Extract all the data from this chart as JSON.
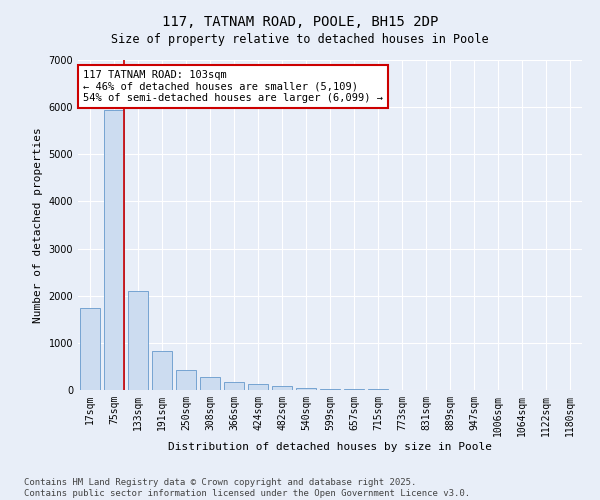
{
  "title": "117, TATNAM ROAD, POOLE, BH15 2DP",
  "subtitle": "Size of property relative to detached houses in Poole",
  "xlabel": "Distribution of detached houses by size in Poole",
  "ylabel": "Number of detached properties",
  "categories": [
    "17sqm",
    "75sqm",
    "133sqm",
    "191sqm",
    "250sqm",
    "308sqm",
    "366sqm",
    "424sqm",
    "482sqm",
    "540sqm",
    "599sqm",
    "657sqm",
    "715sqm",
    "773sqm",
    "831sqm",
    "889sqm",
    "947sqm",
    "1006sqm",
    "1064sqm",
    "1122sqm",
    "1180sqm"
  ],
  "values": [
    1750,
    5950,
    2100,
    820,
    430,
    270,
    170,
    130,
    80,
    50,
    30,
    20,
    15,
    5,
    3,
    2,
    1,
    1,
    0,
    0,
    0
  ],
  "bar_color": "#ccdcf0",
  "bar_edge_color": "#6699cc",
  "vline_color": "#cc0000",
  "vline_x_index": 1,
  "annotation_text": "117 TATNAM ROAD: 103sqm\n← 46% of detached houses are smaller (5,109)\n54% of semi-detached houses are larger (6,099) →",
  "annotation_box_facecolor": "#ffffff",
  "annotation_box_edgecolor": "#cc0000",
  "ylim": [
    0,
    7000
  ],
  "yticks": [
    0,
    1000,
    2000,
    3000,
    4000,
    5000,
    6000,
    7000
  ],
  "bg_color": "#e8eef8",
  "plot_bg_color": "#e8eef8",
  "grid_color": "#ffffff",
  "footer_line1": "Contains HM Land Registry data © Crown copyright and database right 2025.",
  "footer_line2": "Contains public sector information licensed under the Open Government Licence v3.0.",
  "title_fontsize": 10,
  "axis_label_fontsize": 8,
  "tick_fontsize": 7,
  "annotation_fontsize": 7.5,
  "footer_fontsize": 6.5
}
